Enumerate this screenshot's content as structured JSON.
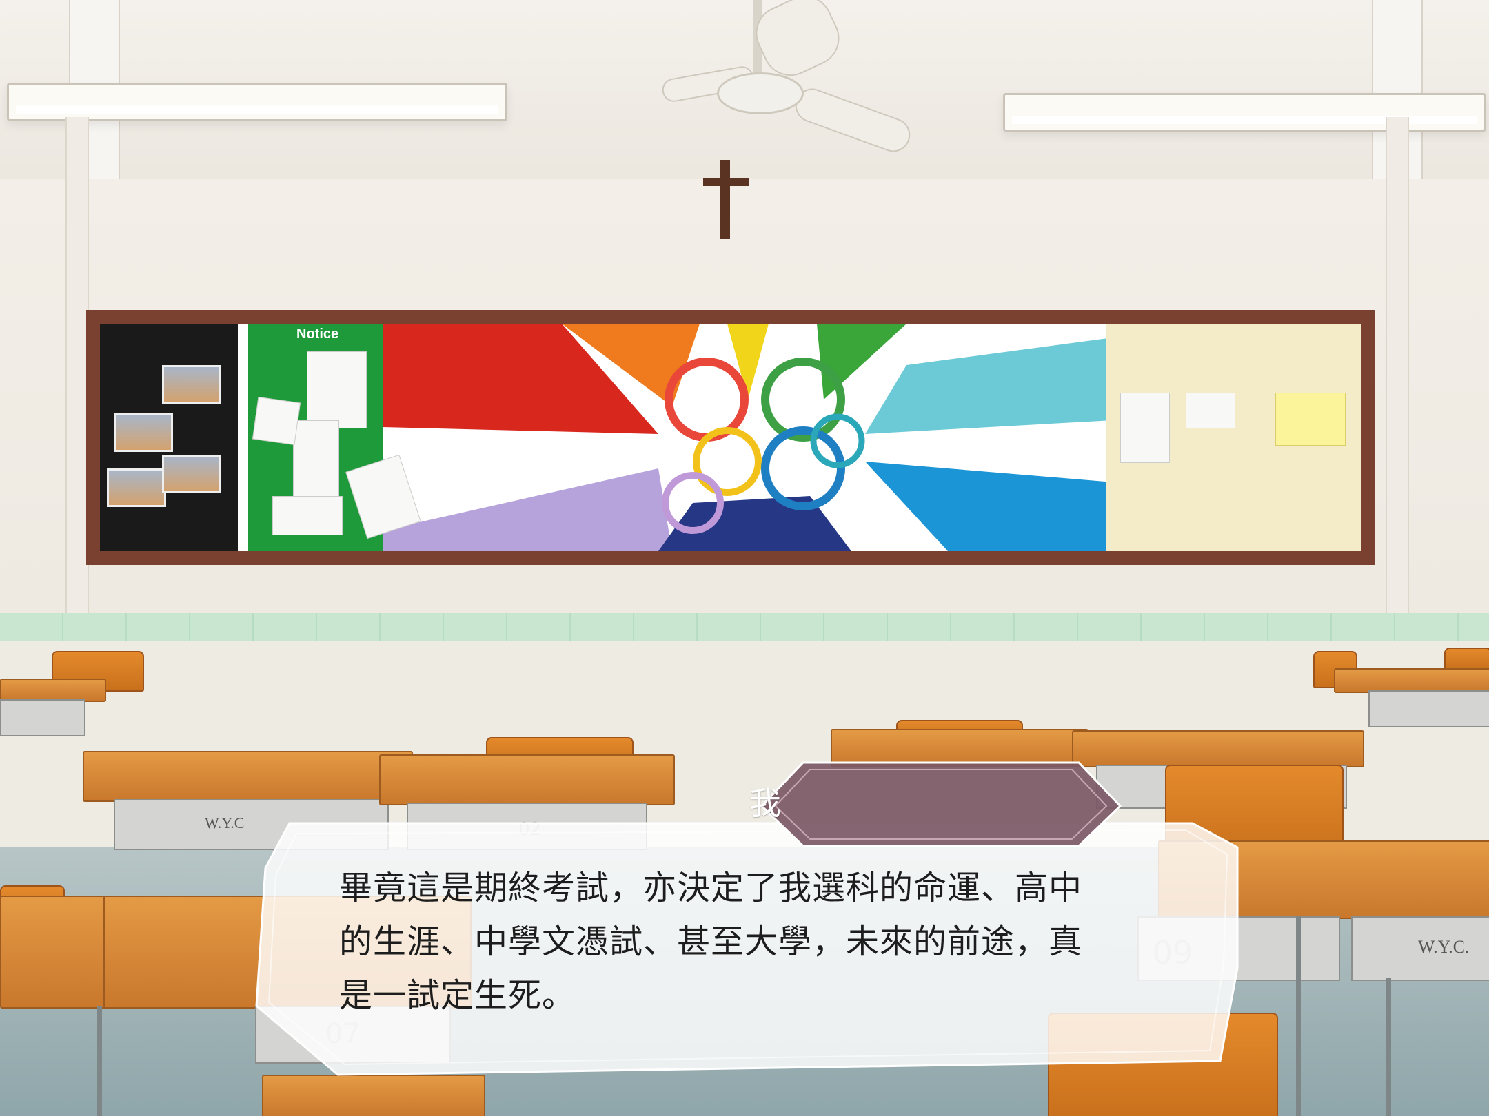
{
  "dialogue": {
    "speaker": "我",
    "line": "畢竟這是期終考試，亦決定了我選科的命運、高中\n的生涯、中學文憑試、甚至大學，未來的前途，真\n是一試定生死。"
  },
  "background": {
    "board_label": "Notice",
    "desk_label_left": "W.Y.C",
    "desk_label_right": "W.Y.C.",
    "desk_number_a": "02",
    "desk_number_b": "09",
    "desk_number_c": "07"
  },
  "colors": {
    "name_plate": "#7b5865",
    "dialog_box": "#ffffff"
  }
}
